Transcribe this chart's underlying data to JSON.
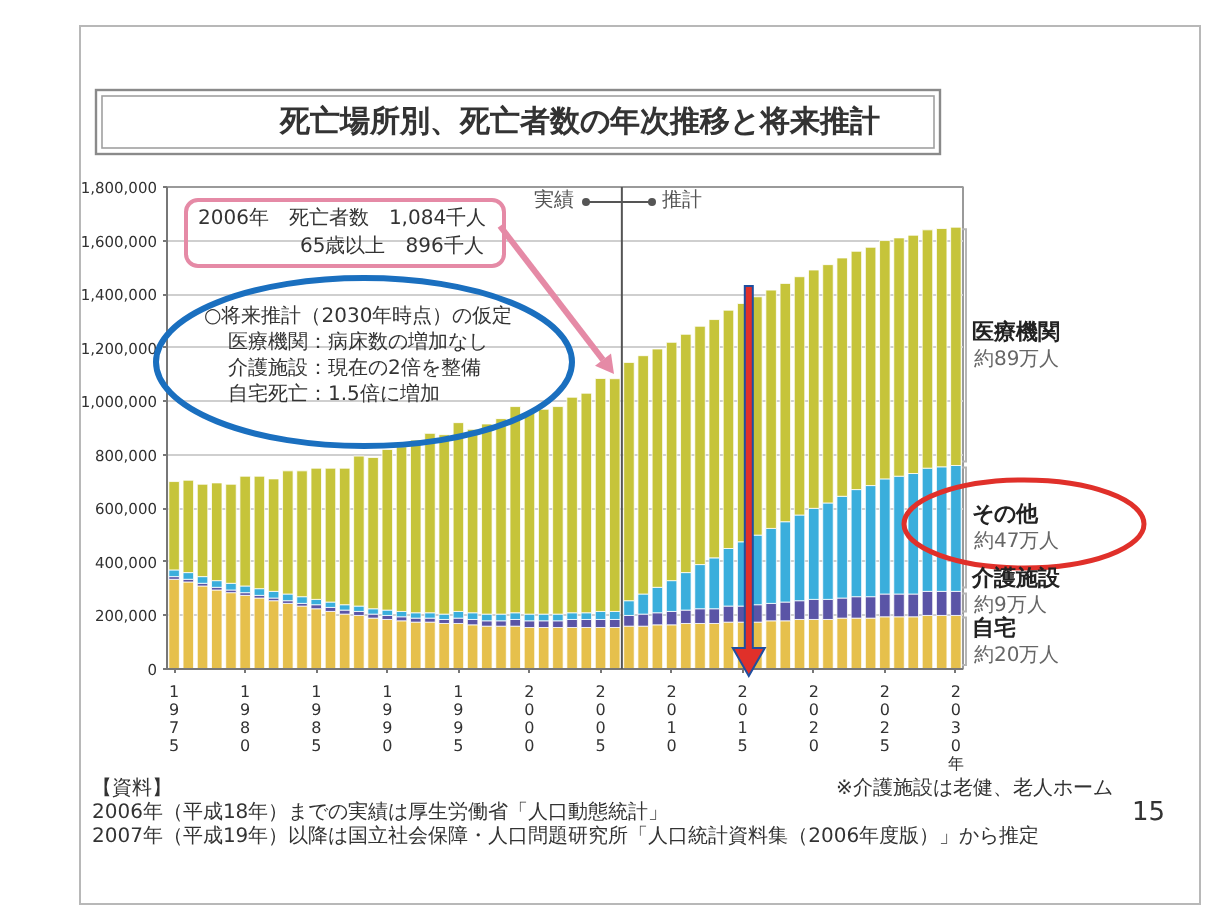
{
  "chart_data": {
    "type": "bar",
    "title": "死亡場所別、死亡者数の年次推移と将来推計",
    "x": [
      1975,
      1976,
      1977,
      1978,
      1979,
      1980,
      1981,
      1982,
      1983,
      1984,
      1985,
      1986,
      1987,
      1988,
      1989,
      1990,
      1991,
      1992,
      1993,
      1994,
      1995,
      1996,
      1997,
      1998,
      1999,
      2000,
      2001,
      2002,
      2003,
      2004,
      2005,
      2006,
      2007,
      2008,
      2009,
      2010,
      2011,
      2012,
      2013,
      2014,
      2015,
      2016,
      2017,
      2018,
      2019,
      2020,
      2021,
      2022,
      2023,
      2024,
      2025,
      2026,
      2027,
      2028,
      2029,
      2030
    ],
    "xlim": [
      1974.5,
      2030.5
    ],
    "xticks": [
      1975,
      1980,
      1985,
      1990,
      1995,
      2000,
      2005,
      2010,
      2015,
      2020,
      2025,
      {
        "value": 2030,
        "label": "2030年"
      }
    ],
    "ylim": [
      0,
      1800000
    ],
    "yticks": [
      0,
      {
        "value": 200000,
        "label": "200,000"
      },
      {
        "value": 400000,
        "label": "400,000"
      },
      {
        "value": 600000,
        "label": "600,000"
      },
      {
        "value": 800000,
        "label": "800,000"
      },
      {
        "value": 1000000,
        "label": "1,000,000"
      },
      {
        "value": 1200000,
        "label": "1,200,000"
      },
      {
        "value": 1400000,
        "label": "1,400,000"
      },
      {
        "value": 1600000,
        "label": "1,600,000"
      },
      {
        "value": 1800000,
        "label": "1,800,000"
      }
    ],
    "stacked": true,
    "grid": "y",
    "series": [
      {
        "name": "自宅",
        "color": "#e6c04c",
        "values": [
          335000,
          325000,
          310000,
          295000,
          285000,
          275000,
          265000,
          255000,
          245000,
          235000,
          225000,
          215000,
          205000,
          200000,
          190000,
          185000,
          180000,
          175000,
          175000,
          170000,
          170000,
          165000,
          160000,
          160000,
          160000,
          155000,
          155000,
          155000,
          155000,
          155000,
          155000,
          155000,
          160000,
          160000,
          165000,
          165000,
          170000,
          170000,
          170000,
          175000,
          175000,
          175000,
          180000,
          180000,
          185000,
          185000,
          185000,
          190000,
          190000,
          190000,
          195000,
          195000,
          195000,
          200000,
          200000,
          200000
        ]
      },
      {
        "name": "介護施設",
        "color": "#5a54a6",
        "values": [
          10000,
          10000,
          10000,
          10000,
          10000,
          10000,
          10000,
          10000,
          10000,
          10000,
          15000,
          15000,
          15000,
          15000,
          15000,
          15000,
          15000,
          15000,
          15000,
          15000,
          20000,
          20000,
          20000,
          20000,
          25000,
          25000,
          25000,
          25000,
          30000,
          30000,
          30000,
          30000,
          40000,
          45000,
          45000,
          50000,
          50000,
          55000,
          55000,
          60000,
          60000,
          65000,
          65000,
          70000,
          70000,
          75000,
          75000,
          75000,
          80000,
          80000,
          85000,
          85000,
          85000,
          90000,
          90000,
          90000
        ]
      },
      {
        "name": "その他",
        "color": "#3aaedc",
        "values": [
          25000,
          25000,
          25000,
          25000,
          25000,
          25000,
          25000,
          25000,
          25000,
          25000,
          20000,
          20000,
          20000,
          20000,
          20000,
          20000,
          20000,
          20000,
          20000,
          20000,
          25000,
          25000,
          25000,
          25000,
          25000,
          25000,
          25000,
          25000,
          25000,
          25000,
          30000,
          30000,
          55000,
          75000,
          95000,
          115000,
          140000,
          165000,
          190000,
          215000,
          240000,
          260000,
          280000,
          300000,
          320000,
          340000,
          360000,
          380000,
          400000,
          415000,
          430000,
          440000,
          450000,
          460000,
          465000,
          470000
        ]
      },
      {
        "name": "医療機関",
        "color": "#c6c43a",
        "values": [
          330000,
          345000,
          345000,
          365000,
          370000,
          410000,
          420000,
          420000,
          460000,
          470000,
          490000,
          500000,
          510000,
          560000,
          565000,
          600000,
          615000,
          645000,
          670000,
          670000,
          705000,
          685000,
          710000,
          730000,
          770000,
          755000,
          765000,
          775000,
          805000,
          820000,
          870000,
          869000,
          890000,
          890000,
          890000,
          890000,
          890000,
          890000,
          890000,
          890000,
          890000,
          890000,
          890000,
          890000,
          890000,
          890000,
          890000,
          890000,
          890000,
          890000,
          890000,
          890000,
          890000,
          890000,
          890000,
          890000
        ]
      }
    ],
    "ref_lines": [
      {
        "axis": "x",
        "value": 2006.5,
        "color": "#555555"
      }
    ],
    "annotations": [
      "2006年　死亡者数　1,084千人",
      "65歳以上　896千人",
      "○将来推計（2030年時点）の仮定",
      "医療機関：病床数の増加なし",
      "介護施設：現在の2倍を整備",
      "自宅死亡：1.5倍に増加",
      "実績",
      "推計",
      "【資料】",
      "2006年（平成18年）までの実績は厚生労働省「人口動態統計」",
      "2007年（平成19年）以降は国立社会保障・人口問題研究所「人口統計資料集（2006年度版）」から推定",
      "※介護施設は老健、老人ホーム",
      "15",
      "約89万人",
      "約47万人",
      "約9万人",
      "約20万人"
    ]
  }
}
